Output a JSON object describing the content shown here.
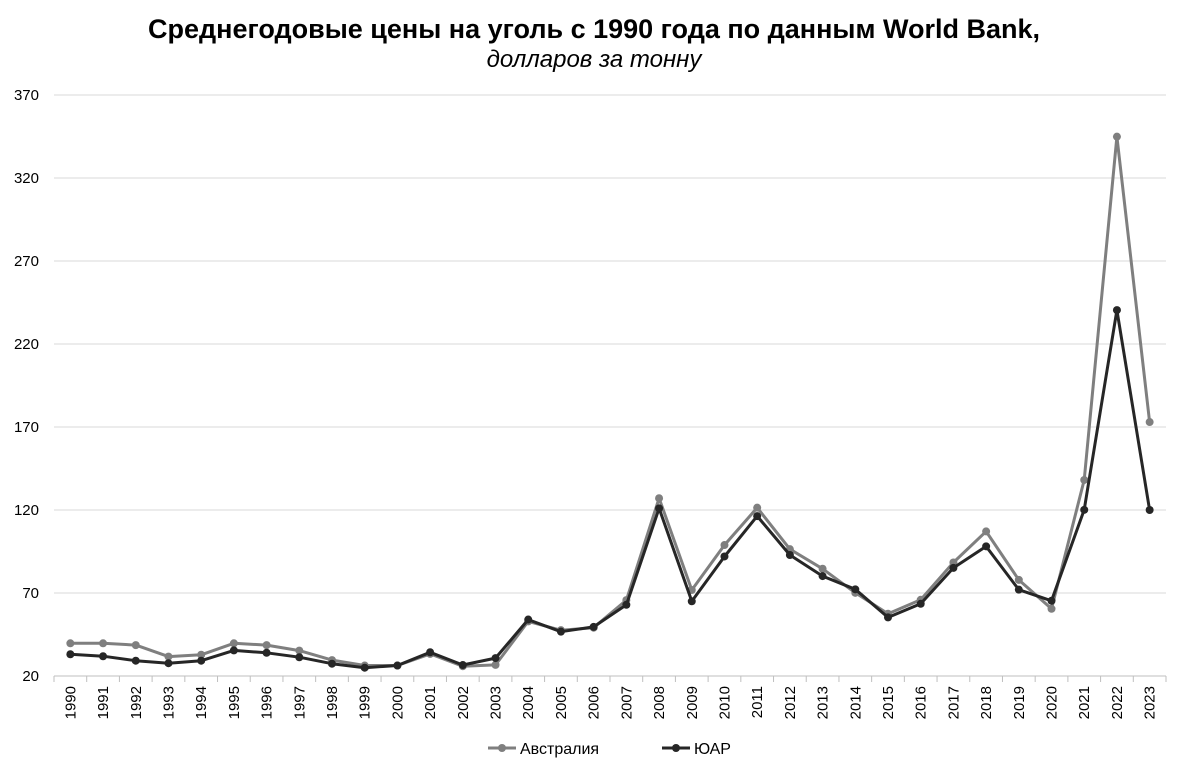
{
  "chart_data": {
    "type": "line",
    "title": "Среднегодовые цены на уголь с 1990 года по данным World Bank,",
    "subtitle": "долларов за тонну",
    "categories": [
      "1990",
      "1991",
      "1992",
      "1993",
      "1994",
      "1995",
      "1996",
      "1997",
      "1998",
      "1999",
      "2000",
      "2001",
      "2002",
      "2003",
      "2004",
      "2005",
      "2006",
      "2007",
      "2008",
      "2009",
      "2010",
      "2011",
      "2012",
      "2013",
      "2014",
      "2015",
      "2016",
      "2017",
      "2018",
      "2019",
      "2020",
      "2021",
      "2022",
      "2023"
    ],
    "y_ticks": [
      "20",
      "70",
      "120",
      "170",
      "220",
      "270",
      "320",
      "370"
    ],
    "ylim": [
      20,
      370
    ],
    "grid": "horizontal",
    "legend_position": "bottom",
    "series": [
      {
        "name": "Австралия",
        "color": "#7f7f7f",
        "values": [
          39.7,
          39.7,
          38.6,
          31.7,
          32.8,
          39.7,
          38.6,
          35.3,
          29.6,
          26.3,
          26.3,
          33.3,
          25.9,
          26.7,
          52.9,
          47.6,
          49.1,
          65.7,
          127.1,
          71.8,
          98.9,
          121.4,
          96.4,
          84.6,
          70.1,
          57.5,
          65.9,
          88.4,
          107.1,
          77.9,
          60.5,
          138.1,
          344.9,
          173.0
        ]
      },
      {
        "name": "ЮАР",
        "color": "#262626",
        "values": [
          33.1,
          31.9,
          29.2,
          27.7,
          29.2,
          35.4,
          34.0,
          31.3,
          27.4,
          25.0,
          26.3,
          34.3,
          26.6,
          30.8,
          54.0,
          46.7,
          49.6,
          62.9,
          121.0,
          65.0,
          92.0,
          116.3,
          92.9,
          80.2,
          72.2,
          55.3,
          63.5,
          85.1,
          98.1,
          72.0,
          65.3,
          120.1,
          240.4,
          120.0
        ]
      }
    ]
  }
}
